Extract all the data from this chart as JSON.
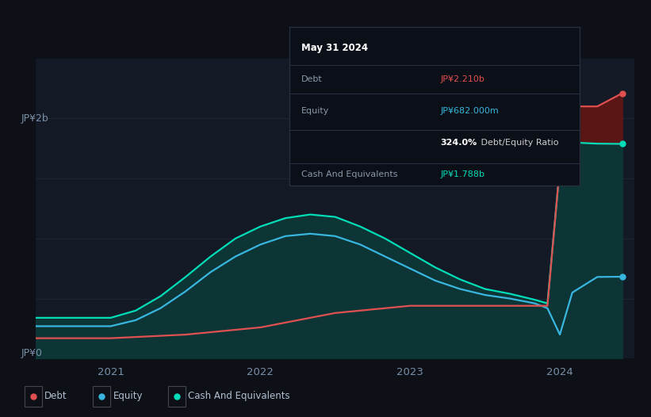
{
  "background_color": "#0d1117",
  "plot_bg_color": "#131a25",
  "ylabel_top": "JP¥2b",
  "ylabel_bottom": "JP¥0",
  "x_ticks": [
    "2021",
    "2022",
    "2023",
    "2024"
  ],
  "x_tick_pos": [
    2021.0,
    2022.0,
    2023.0,
    2024.0
  ],
  "debt_color": "#e05050",
  "equity_color": "#38b6e0",
  "cash_color": "#00ddb8",
  "debt_fill_color": "#5a1515",
  "cash_fill_color": "#0e3535",
  "grid_color": "#1e2a3a",
  "legend": [
    {
      "label": "Debt",
      "color": "#e05050"
    },
    {
      "label": "Equity",
      "color": "#38b6e0"
    },
    {
      "label": "Cash And Equivalents",
      "color": "#00ddb8"
    }
  ],
  "tooltip": {
    "date": "May 31 2024",
    "debt_label": "Debt",
    "debt_value": "JP¥2.210b",
    "equity_label": "Equity",
    "equity_value": "JP¥682.000m",
    "ratio_value": "324.0%",
    "ratio_label": " Debt/Equity Ratio",
    "cash_label": "Cash And Equivalents",
    "cash_value": "JP¥1.788b"
  },
  "time": [
    2020.5,
    2020.667,
    2020.833,
    2021.0,
    2021.167,
    2021.333,
    2021.5,
    2021.667,
    2021.833,
    2022.0,
    2022.167,
    2022.333,
    2022.5,
    2022.667,
    2022.833,
    2023.0,
    2023.167,
    2023.333,
    2023.5,
    2023.667,
    2023.833,
    2023.917,
    2024.0,
    2024.083,
    2024.25,
    2024.417
  ],
  "debt": [
    0.17,
    0.17,
    0.17,
    0.17,
    0.18,
    0.19,
    0.2,
    0.22,
    0.24,
    0.26,
    0.3,
    0.34,
    0.38,
    0.4,
    0.42,
    0.44,
    0.44,
    0.44,
    0.44,
    0.44,
    0.44,
    0.44,
    1.6,
    2.1,
    2.1,
    2.21
  ],
  "equity": [
    0.27,
    0.27,
    0.27,
    0.27,
    0.32,
    0.42,
    0.56,
    0.72,
    0.85,
    0.95,
    1.02,
    1.04,
    1.02,
    0.95,
    0.85,
    0.75,
    0.65,
    0.58,
    0.53,
    0.5,
    0.46,
    0.42,
    0.2,
    0.55,
    0.68,
    0.682
  ],
  "cash": [
    0.34,
    0.34,
    0.34,
    0.34,
    0.4,
    0.52,
    0.68,
    0.85,
    1.0,
    1.1,
    1.17,
    1.2,
    1.18,
    1.1,
    1.0,
    0.88,
    0.76,
    0.66,
    0.58,
    0.54,
    0.49,
    0.46,
    1.6,
    1.8,
    1.79,
    1.788
  ],
  "ylim": [
    0,
    2.5
  ],
  "xlim": [
    2020.5,
    2024.5
  ]
}
